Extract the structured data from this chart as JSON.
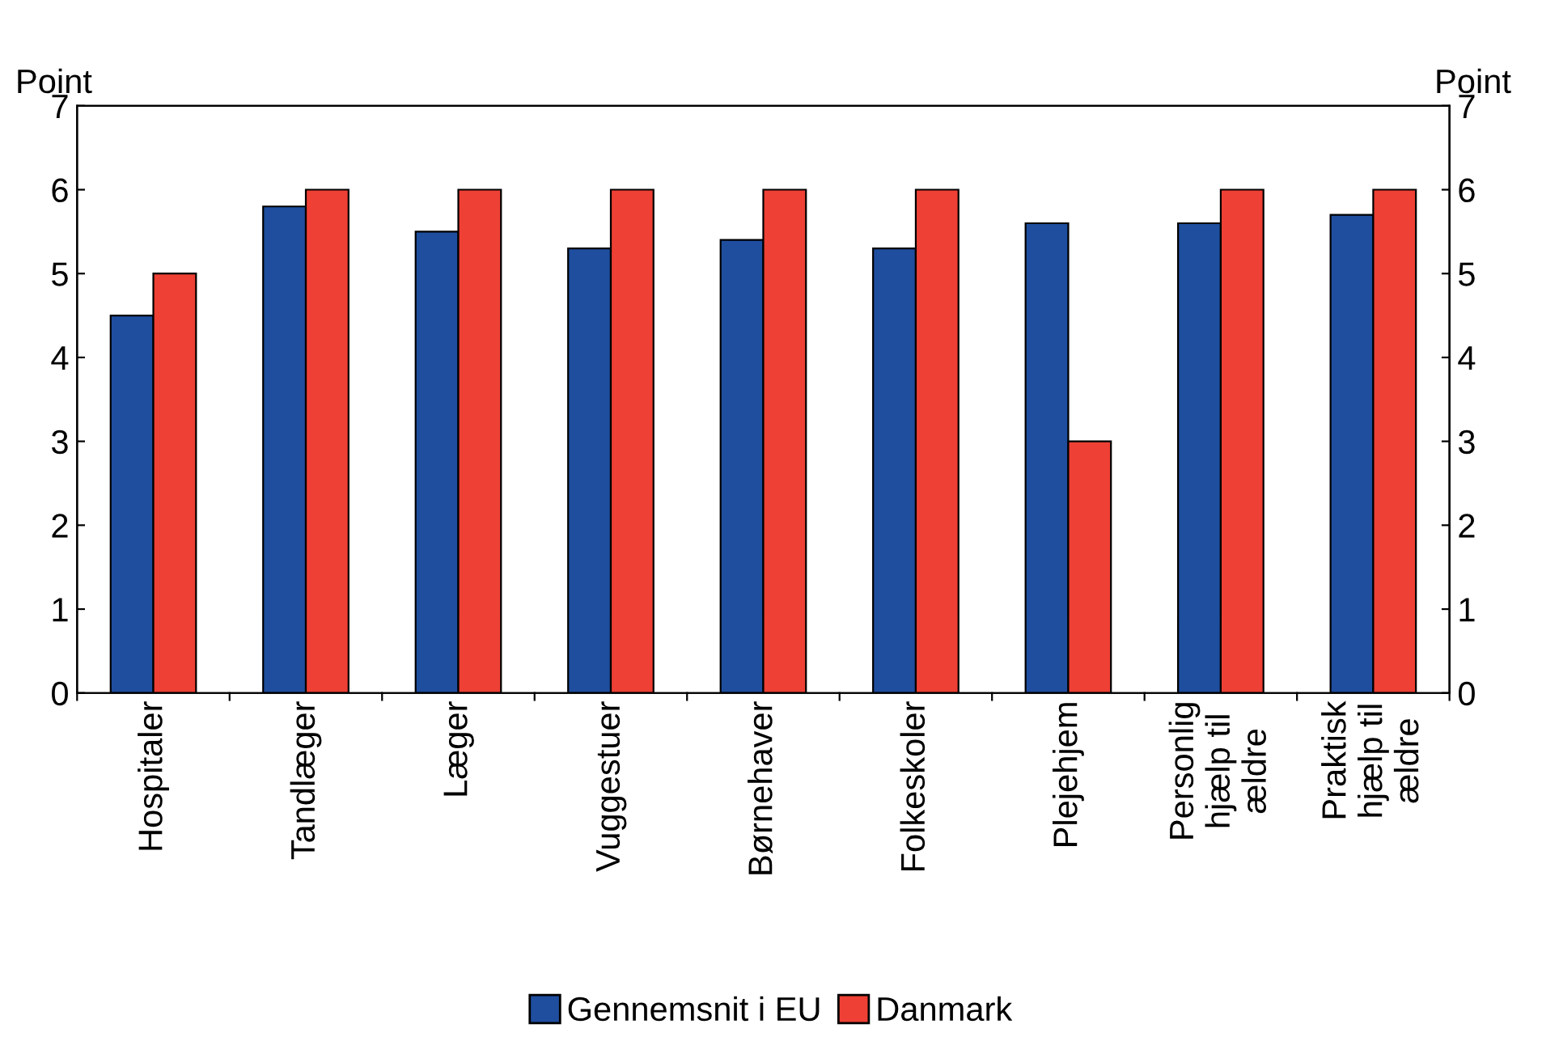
{
  "chart_data": {
    "type": "bar",
    "categories": [
      "Hospitaler",
      "Tandlæger",
      "Læger",
      "Vuggestuer",
      "Børnehaver",
      "Folkeskoler",
      "Plejehjem",
      "Personlig\nhjælp til\nældre",
      "Praktisk\nhjælp til\nældre"
    ],
    "series": [
      {
        "name": "Gennemsnit i EU",
        "color": "#1f4e9f",
        "values": [
          4.5,
          5.8,
          5.5,
          5.3,
          5.4,
          5.3,
          5.6,
          5.6,
          5.7
        ]
      },
      {
        "name": "Danmark",
        "color": "#ee4035",
        "values": [
          5,
          6,
          6,
          6,
          6,
          6,
          3,
          6,
          6
        ]
      }
    ],
    "ylabel": "Point",
    "y2label": "Point",
    "ylim": [
      0,
      7
    ],
    "yticks": [
      0,
      1,
      2,
      3,
      4,
      5,
      6,
      7
    ],
    "y2lim": [
      0,
      7
    ],
    "y2ticks": [
      0,
      1,
      2,
      3,
      4,
      5,
      6,
      7
    ],
    "legend": "bottom",
    "grid": false
  }
}
